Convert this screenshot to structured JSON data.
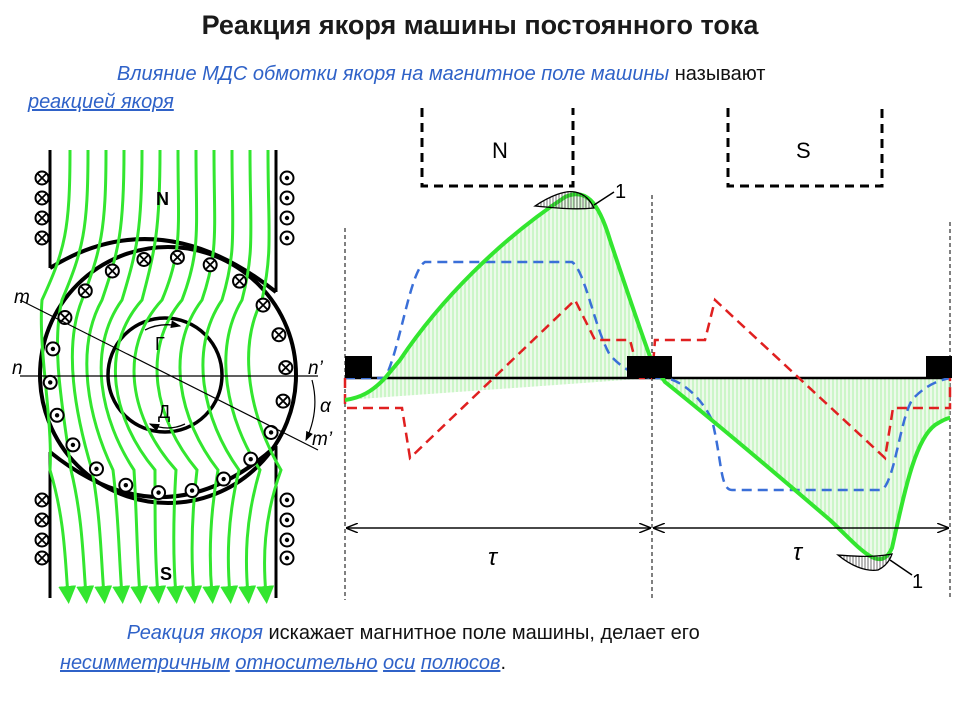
{
  "title": "Реакция якоря машины постоянного тока",
  "intro": {
    "indent": "                ",
    "colored": "Влияние МДС обмотки якоря на магнитное поле машины",
    "plain": " называют",
    "term": "реакцией якоря"
  },
  "machine": {
    "pole_top": "N",
    "pole_bottom": "S",
    "rotor_upper": "Г",
    "rotor_lower": "Д",
    "m": "m",
    "m_prime": "m’",
    "n": "n",
    "n_prime": "n’",
    "alpha": "α"
  },
  "waveform": {
    "pole_n": "N",
    "pole_s": "S",
    "tau_1": "τ",
    "tau_2": "τ",
    "marker_1": "1",
    "marker_2": "1"
  },
  "conclusion": {
    "indent": "            ",
    "colored": "Реакция якоря",
    "plain": " искажает магнитное поле машины, делает его",
    "w1": "несимметричным",
    "w2": "относительно",
    "w3": "оси",
    "w4": "полюсов",
    "end": "."
  },
  "colors": {
    "field": "#33e62f",
    "blue_dash": "#3a6fd8",
    "red_dash": "#e02020",
    "text_blue": "#2f62c8"
  }
}
